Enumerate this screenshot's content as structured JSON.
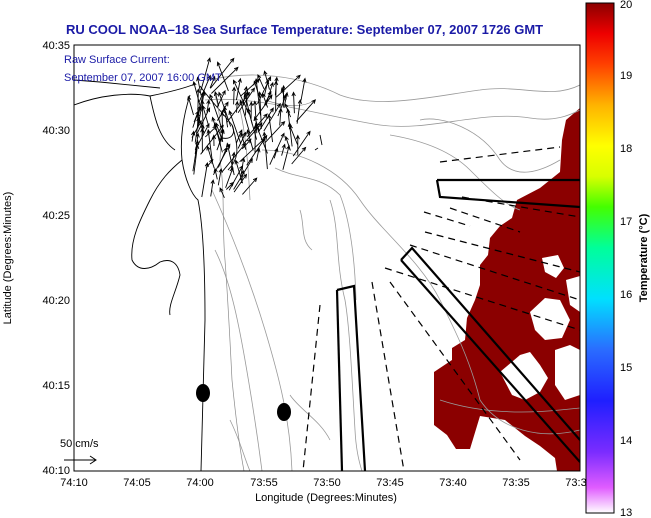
{
  "title": "RU COOL  NOAA–18  Sea Surface Temperature:  September 07, 2007 1726 GMT",
  "current_label": {
    "line1": "Raw Surface Current:",
    "line2": "September 07, 2007 16:00 GMT"
  },
  "scale_label": "50 cm/s",
  "x_axis": {
    "label": "Longitude (Degrees:Minutes)",
    "ticks": [
      "74:10",
      "74:05",
      "74:00",
      "73:55",
      "73:50",
      "73:45",
      "73:40",
      "73:35",
      "73:3"
    ]
  },
  "y_axis": {
    "label": "Latitude (Degrees:Minutes)",
    "ticks": [
      "40:35",
      "40:30",
      "40:25",
      "40:20",
      "40:15",
      "40:10"
    ]
  },
  "colorbar": {
    "label": "Temperature (°C)",
    "ticks": [
      "20",
      "19",
      "18",
      "17",
      "16",
      "15",
      "14",
      "13"
    ],
    "range": [
      13,
      20
    ]
  },
  "colors": {
    "title": "#1a1aa6",
    "sst_warm": "#8b0000",
    "land_contour": "#000000",
    "bathymetry": "#9a9a9a"
  }
}
